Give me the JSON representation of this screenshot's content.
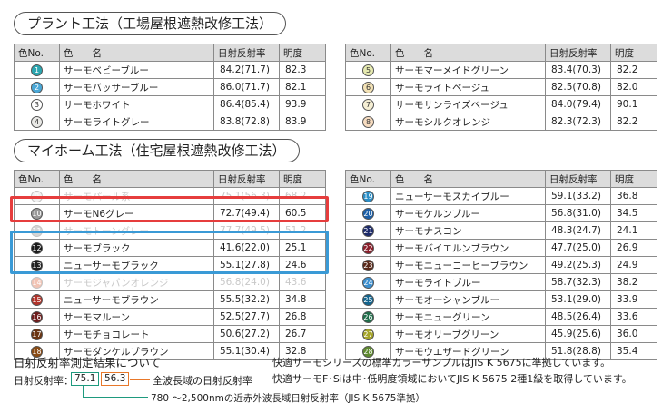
{
  "plant": {
    "title": "プラント工法（工場屋根遮熱改修工法）",
    "headers": [
      "色No.",
      "色　　名",
      "日射反射率",
      "明度"
    ],
    "left": [
      {
        "no": "1",
        "name": "サーモベビーブルー",
        "ref": "84.2(71.7)",
        "bright": "82.3",
        "color": "#2ba6b0",
        "text": "#fff"
      },
      {
        "no": "2",
        "name": "サーモバッサーブルー",
        "ref": "86.0(71.7)",
        "bright": "82.1",
        "color": "#4aa7d6",
        "text": "#fff"
      },
      {
        "no": "3",
        "name": "サーモホワイト",
        "ref": "86.4(85.4)",
        "bright": "93.9",
        "color": "#ffffff",
        "text": "#333"
      },
      {
        "no": "4",
        "name": "サーモライトグレー",
        "ref": "83.8(72.8)",
        "bright": "83.9",
        "color": "#e9e9e6",
        "text": "#333"
      }
    ],
    "right": [
      {
        "no": "5",
        "name": "サーモマーメイドグリーン",
        "ref": "83.4(70.3)",
        "bright": "82.2",
        "color": "#e6eab0",
        "text": "#333"
      },
      {
        "no": "6",
        "name": "サーモライトベージュ",
        "ref": "82.5(70.8)",
        "bright": "82.0",
        "color": "#f3e2b5",
        "text": "#333"
      },
      {
        "no": "7",
        "name": "サーモサンライズベージュ",
        "ref": "84.0(79.4)",
        "bright": "90.1",
        "color": "#f6efd4",
        "text": "#333"
      },
      {
        "no": "8",
        "name": "サーモシルクオレンジ",
        "ref": "82.3(72.3)",
        "bright": "82.2",
        "color": "#f7dcc0",
        "text": "#333"
      }
    ]
  },
  "myhome": {
    "title": "マイホーム工法（住宅屋根遮熱改修工法）",
    "headers": [
      "色No.",
      "色　　名",
      "日射反射率",
      "明度"
    ],
    "left": [
      {
        "no": "9",
        "name": "サーモパール系",
        "ref": "75.1(56.3)",
        "bright": "68.2",
        "color": "#dcdcdc",
        "text": "#fff",
        "faded": true
      },
      {
        "no": "10",
        "name": "サーモN6グレー",
        "ref": "72.7(49.4)",
        "bright": "60.5",
        "color": "#9a9a9a",
        "text": "#fff"
      },
      {
        "no": "11",
        "name": "サーモトーングレー",
        "ref": "77.7(49.5)",
        "bright": "51.2",
        "color": "#888888",
        "text": "#fff",
        "faded": true
      },
      {
        "no": "12",
        "name": "サーモブラック",
        "ref": "41.6(22.0)",
        "bright": "25.1",
        "color": "#1a1a1a",
        "text": "#fff"
      },
      {
        "no": "13",
        "name": "ニューサーモブラック",
        "ref": "55.1(27.8)",
        "bright": "24.6",
        "color": "#222222",
        "text": "#fff"
      },
      {
        "no": "14",
        "name": "サーモジャパンオレンジ",
        "ref": "56.8(24.0)",
        "bright": "43.6",
        "color": "#d9572a",
        "text": "#fff",
        "faded": true
      },
      {
        "no": "15",
        "name": "ニューサーモブラウン",
        "ref": "55.5(32.2)",
        "bright": "34.8",
        "color": "#b2342b",
        "text": "#fff"
      },
      {
        "no": "16",
        "name": "サーモマルーン",
        "ref": "52.5(27.7)",
        "bright": "26.8",
        "color": "#6e1c1c",
        "text": "#fff"
      },
      {
        "no": "17",
        "name": "サーモチョコレート",
        "ref": "50.6(27.2)",
        "bright": "26.7",
        "color": "#6b3614",
        "text": "#fff"
      },
      {
        "no": "18",
        "name": "サーモダンケルブラウン",
        "ref": "55.1(30.4)",
        "bright": "32.8",
        "color": "#8a4b14",
        "text": "#fff"
      }
    ],
    "right": [
      {
        "no": "19",
        "name": "ニューサーモスカイブルー",
        "ref": "59.1(33.2)",
        "bright": "36.8",
        "color": "#2b8fc7",
        "text": "#fff"
      },
      {
        "no": "20",
        "name": "サーモケルンブルー",
        "ref": "56.8(31.0)",
        "bright": "34.5",
        "color": "#1b5fa8",
        "text": "#fff"
      },
      {
        "no": "21",
        "name": "サーモナスコン",
        "ref": "48.3(24.7)",
        "bright": "24.1",
        "color": "#1c2a6b",
        "text": "#fff"
      },
      {
        "no": "22",
        "name": "サーモバイエルンブラウン",
        "ref": "47.7(25.0)",
        "bright": "26.9",
        "color": "#8b1e2a",
        "text": "#fff"
      },
      {
        "no": "23",
        "name": "サーモニューコーヒーブラウン",
        "ref": "49.2(25.3)",
        "bright": "24.9",
        "color": "#5a2a1a",
        "text": "#fff"
      },
      {
        "no": "24",
        "name": "サーモライトブルー",
        "ref": "58.7(32.3)",
        "bright": "38.2",
        "color": "#3c8fcf",
        "text": "#fff"
      },
      {
        "no": "25",
        "name": "サーモオーシャンブルー",
        "ref": "53.1(29.0)",
        "bright": "33.9",
        "color": "#12648e",
        "text": "#fff"
      },
      {
        "no": "26",
        "name": "サーモニューグリーン",
        "ref": "48.5(26.4)",
        "bright": "33.6",
        "color": "#1f6e4a",
        "text": "#fff"
      },
      {
        "no": "27",
        "name": "サーモオリーブグリーン",
        "ref": "45.9(25.6)",
        "bright": "36.0",
        "color": "#a6a52a",
        "text": "#fff"
      },
      {
        "no": "28",
        "name": "サーモウエザードグリーン",
        "ref": "51.8(28.8)",
        "bright": "35.4",
        "color": "#5f8a2f",
        "text": "#fff"
      }
    ]
  },
  "legend": {
    "heading": "日射反射率測定結果について",
    "label": "日射反射率：",
    "sample_nir": "75.1",
    "sample_total": "56.3",
    "total_note": "全波長域の日射反射率",
    "nir_note": "780 ～2,500nmの近赤外波長域日射反射率（JIS K 5675準拠）",
    "nir_color": "#1e9a7e",
    "total_color": "#e8782a"
  },
  "notes": {
    "line1": "快適サーモシリーズの標準カラーサンプルはJIS K 5675に準拠しています。",
    "line2": "快適サーモF･Siは中･低明度領域においてJIS K 5675 2種1級を取得しています。"
  },
  "highlights": {
    "red": "#e63d3d",
    "blue": "#3a9ad6"
  }
}
